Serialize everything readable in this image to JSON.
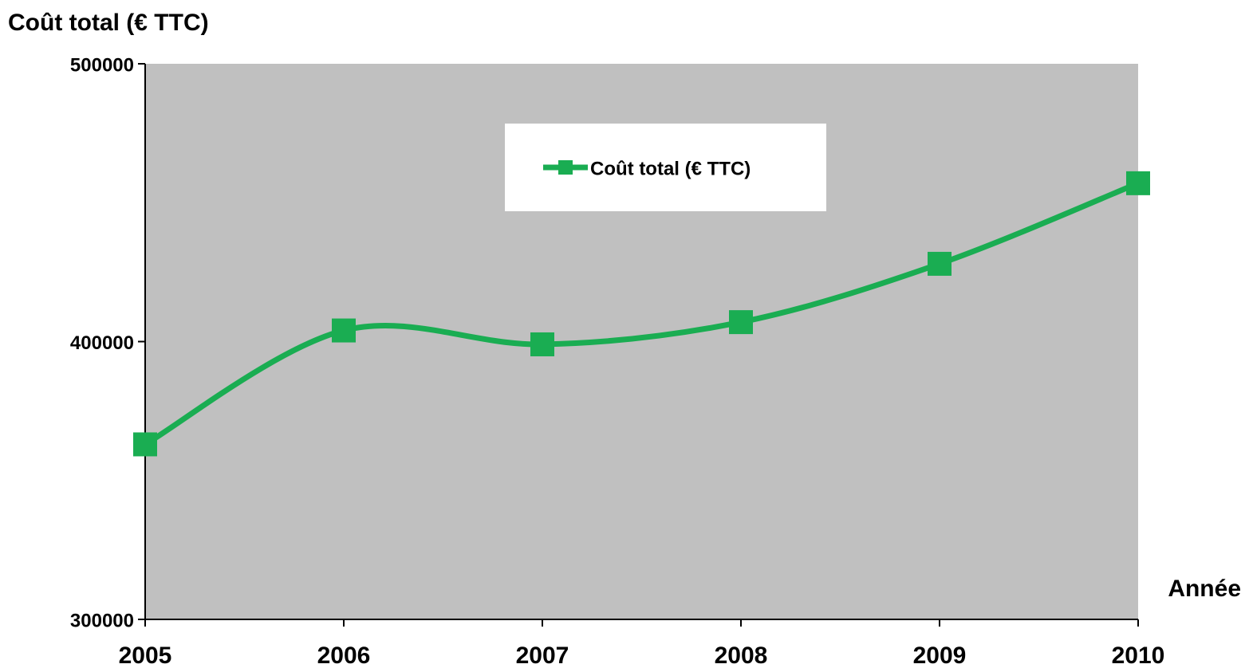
{
  "chart_data": {
    "type": "line",
    "y_label": "Coût total (€ TTC)",
    "x_label": "Année",
    "categories": [
      "2005",
      "2006",
      "2007",
      "2008",
      "2009",
      "2010"
    ],
    "series": [
      {
        "name": "Coût total (€ TTC)",
        "color": "#1aad52",
        "values": [
          363000,
          404000,
          399000,
          407000,
          428000,
          457000
        ]
      }
    ],
    "ylim": [
      300000,
      500000
    ],
    "yticks": [
      300000,
      400000,
      500000
    ],
    "smooth": true,
    "grid": false,
    "legend": "top",
    "plot_background": "#c0c0c0"
  }
}
